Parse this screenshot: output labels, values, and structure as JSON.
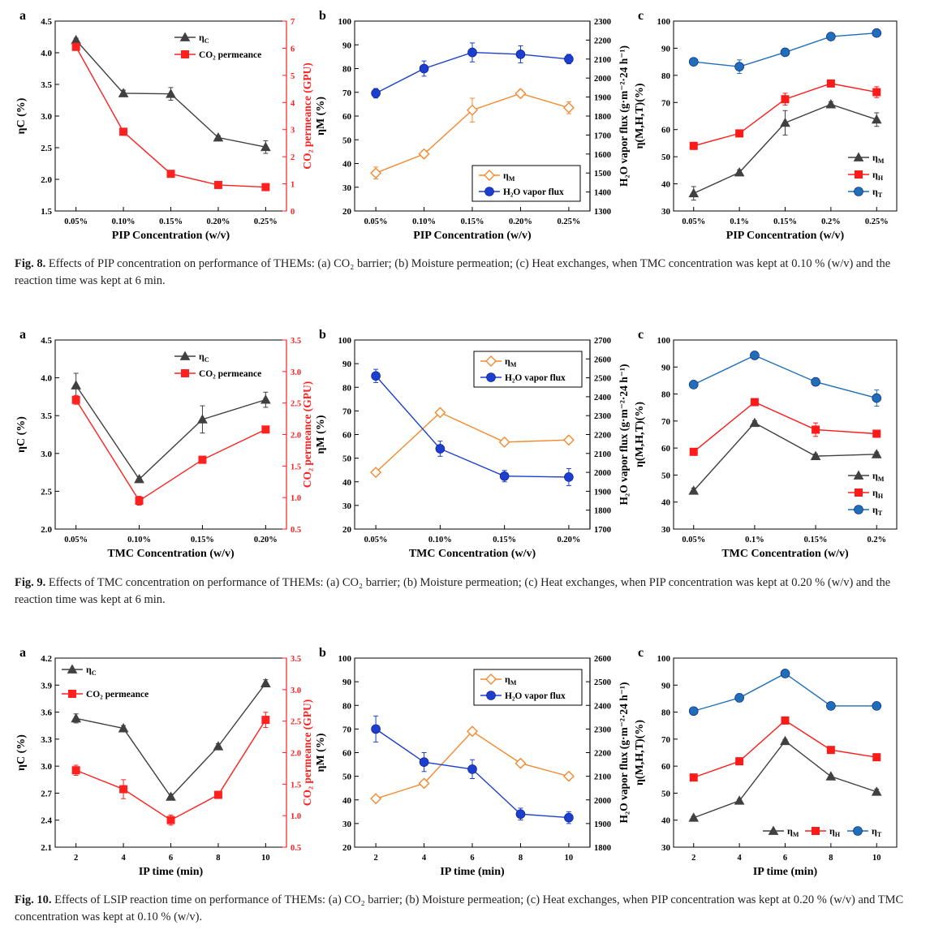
{
  "figures": [
    {
      "id": "fig8",
      "caption": {
        "label": "Fig. 8.",
        "text": "Effects of PIP concentration on performance of THEMs: (a) CO₂ barrier; (b) Moisture permeation; (c) Heat exchanges, when TMC concentration was kept at 0.10 % (w/v) and the reaction time was kept at 6 min."
      }
    },
    {
      "id": "fig9",
      "caption": {
        "label": "Fig. 9.",
        "text": "Effects of TMC concentration on performance of THEMs: (a) CO₂ barrier; (b) Moisture permeation; (c) Heat exchanges, when PIP concentration was kept at 0.20 % (w/v) and the reaction time was kept at 6 min."
      }
    },
    {
      "id": "fig10",
      "caption": {
        "label": "Fig. 10.",
        "text": "Effects of LSIP reaction time on performance of THEMs: (a) CO₂ barrier; (b) Moisture permeation; (c) Heat exchanges, when PIP concentration was kept at 0.20 % (w/v) and TMC concentration was kept at 0.10 % (w/v)."
      }
    }
  ],
  "chart_data": [
    {
      "figure": "fig8",
      "panel": "a",
      "type": "line",
      "categories": [
        "0.05%",
        "0.10%",
        "0.15%",
        "0.20%",
        "0.25%"
      ],
      "xlabel": "PIP Concentration (w/v)",
      "ylabel_left": "ηC (%)",
      "ylim_left": [
        1.5,
        4.5
      ],
      "yticks_left": [
        "1.5",
        "2.0",
        "2.5",
        "3.0",
        "3.5",
        "4.0",
        "4.5"
      ],
      "ylabel_right": "CO₂ permeance (GPU)",
      "ylim_right": [
        0,
        7
      ],
      "yticks_right": [
        "0",
        "1",
        "2",
        "3",
        "4",
        "5",
        "6",
        "7"
      ],
      "legend_position": "top-right",
      "series": [
        {
          "name": "ηC",
          "axis": "left",
          "color": "#404040",
          "marker": "triangle",
          "values": [
            4.2,
            3.36,
            3.35,
            2.66,
            2.51
          ],
          "errors": [
            0.03,
            0.05,
            0.1,
            0.03,
            0.1
          ]
        },
        {
          "name": "CO₂ permeance",
          "axis": "right",
          "color": "#ff2020",
          "marker": "square",
          "values": [
            6.05,
            2.92,
            1.37,
            0.96,
            0.88
          ],
          "errors": [
            0.12,
            0.05,
            0.05,
            0.05,
            0.05
          ]
        }
      ]
    },
    {
      "figure": "fig8",
      "panel": "b",
      "type": "line",
      "categories": [
        "0.05%",
        "0.10%",
        "0.15%",
        "0.20%",
        "0.25%"
      ],
      "xlabel": "PIP Concentration  (w/v)",
      "ylabel_left": "ηM (%)",
      "ylim_left": [
        20,
        100
      ],
      "yticks_left": [
        "20",
        "30",
        "40",
        "50",
        "60",
        "70",
        "80",
        "90",
        "100"
      ],
      "ylabel_right": "H₂O vapor flux (g·m⁻²·24 h⁻¹)",
      "ylim_right": [
        1300,
        2300
      ],
      "yticks_right": [
        "1300",
        "1400",
        "1500",
        "1600",
        "1700",
        "1800",
        "1900",
        "2000",
        "2100",
        "2200",
        "2300"
      ],
      "legend_position": "bottom-right",
      "series": [
        {
          "name": "ηM",
          "axis": "left",
          "color": "#f28a30",
          "marker": "diamond-open",
          "values": [
            36,
            44,
            62.5,
            69.5,
            63.5
          ],
          "errors": [
            2.5,
            1.5,
            5,
            1.5,
            2.5
          ]
        },
        {
          "name": "H₂O vapor flux",
          "axis": "right",
          "color": "#1c3fcf",
          "marker": "circle",
          "values": [
            1920,
            2050,
            2135,
            2125,
            2100
          ],
          "errors": [
            25,
            40,
            50,
            45,
            25
          ]
        }
      ]
    },
    {
      "figure": "fig8",
      "panel": "c",
      "type": "line",
      "categories": [
        "0.05%",
        "0.1%",
        "0.15%",
        "0.2%",
        "0.25%"
      ],
      "xlabel": "PIP Concentration (w/v)",
      "ylabel_left": "η(M,H,T)(%)",
      "ylim_left": [
        30,
        100
      ],
      "yticks_left": [
        "30",
        "40",
        "50",
        "60",
        "70",
        "80",
        "90",
        "100"
      ],
      "legend_position": "bottom-right",
      "series": [
        {
          "name": "ηM",
          "axis": "left",
          "color": "#404040",
          "marker": "triangle",
          "values": [
            36.5,
            44.2,
            62.5,
            69.3,
            63.7
          ],
          "errors": [
            2.5,
            1,
            4.5,
            1,
            2.5
          ]
        },
        {
          "name": "ηH",
          "axis": "left",
          "color": "#ff1a1a",
          "marker": "square",
          "values": [
            54,
            58.6,
            71.2,
            77,
            73.8
          ],
          "errors": [
            0.5,
            0.5,
            2.2,
            0.7,
            2
          ]
        },
        {
          "name": "ηT",
          "axis": "left",
          "color": "#1f6fb8",
          "marker": "circle",
          "values": [
            85,
            83.2,
            88.5,
            94.3,
            95.6
          ],
          "errors": [
            0.5,
            2.5,
            0.5,
            0.5,
            0.5
          ]
        }
      ]
    },
    {
      "figure": "fig9",
      "panel": "a",
      "type": "line",
      "categories": [
        "0.05%",
        "0.10%",
        "0.15%",
        "0.20%"
      ],
      "xlabel": "TMC Concentration (w/v)",
      "ylabel_left": "ηC (%)",
      "ylim_left": [
        2.0,
        4.5
      ],
      "yticks_left": [
        "2.0",
        "2.5",
        "3.0",
        "3.5",
        "4.0",
        "4.5"
      ],
      "ylabel_right": "CO₂ permeance (GPU)",
      "ylim_right": [
        0.5,
        3.5
      ],
      "yticks_right": [
        "0.5",
        "1.0",
        "1.5",
        "2.0",
        "2.5",
        "3.0",
        "3.5"
      ],
      "legend_position": "top-right",
      "series": [
        {
          "name": "ηC",
          "axis": "left",
          "color": "#404040",
          "marker": "triangle",
          "values": [
            3.9,
            2.66,
            3.45,
            3.71
          ],
          "errors": [
            0.16,
            0.03,
            0.18,
            0.1
          ]
        },
        {
          "name": "CO₂ permeance",
          "axis": "right",
          "color": "#ff2020",
          "marker": "square",
          "values": [
            2.55,
            0.95,
            1.6,
            2.08
          ],
          "errors": [
            0.07,
            0.07,
            0.04,
            0.05
          ]
        }
      ]
    },
    {
      "figure": "fig9",
      "panel": "b",
      "type": "line",
      "categories": [
        "0.05%",
        "0.10%",
        "0.15%",
        "0.20%"
      ],
      "xlabel": "TMC Concentration  (w/v)",
      "ylabel_left": "ηM (%)",
      "ylim_left": [
        20,
        100
      ],
      "yticks_left": [
        "20",
        "30",
        "40",
        "50",
        "60",
        "70",
        "80",
        "90",
        "100"
      ],
      "ylabel_right": "H₂O vapor flux (g·m⁻²·24 h⁻¹)",
      "ylim_right": [
        1700,
        2700
      ],
      "yticks_right": [
        "1700",
        "1800",
        "1900",
        "2000",
        "2100",
        "2200",
        "2300",
        "2400",
        "2500",
        "2600",
        "2700"
      ],
      "legend_position": "top-right",
      "series": [
        {
          "name": "ηM",
          "axis": "left",
          "color": "#f28a30",
          "marker": "diamond-open",
          "values": [
            44,
            69.3,
            56.8,
            57.7
          ],
          "errors": [
            1,
            1,
            1,
            1
          ]
        },
        {
          "name": "H₂O vapor flux",
          "axis": "right",
          "color": "#1c3fcf",
          "marker": "circle",
          "values": [
            2510,
            2125,
            1980,
            1975
          ],
          "errors": [
            35,
            40,
            30,
            45
          ]
        }
      ]
    },
    {
      "figure": "fig9",
      "panel": "c",
      "type": "line",
      "categories": [
        "0.05%",
        "0.1%",
        "0.15%",
        "0.2%"
      ],
      "xlabel": "TMC Concentration  (w/v)",
      "ylabel_left": "η(M,H,T)(%)",
      "ylim_left": [
        30,
        100
      ],
      "yticks_left": [
        "30",
        "40",
        "50",
        "60",
        "70",
        "80",
        "90",
        "100"
      ],
      "legend_position": "bottom-right",
      "series": [
        {
          "name": "ηM",
          "axis": "left",
          "color": "#404040",
          "marker": "triangle",
          "values": [
            44.2,
            69.3,
            57,
            57.7
          ],
          "errors": [
            1,
            0.8,
            0.8,
            0.8
          ]
        },
        {
          "name": "ηH",
          "axis": "left",
          "color": "#ff1a1a",
          "marker": "square",
          "values": [
            58.6,
            77,
            66.8,
            65.3
          ],
          "errors": [
            0.5,
            0.8,
            2.5,
            0.6
          ]
        },
        {
          "name": "ηT",
          "axis": "left",
          "color": "#1f6fb8",
          "marker": "circle",
          "values": [
            83.5,
            94.3,
            84.5,
            78.5
          ],
          "errors": [
            0.5,
            0.5,
            1.2,
            3
          ]
        }
      ]
    },
    {
      "figure": "fig10",
      "panel": "a",
      "type": "line",
      "x": [
        2,
        4,
        6,
        8,
        10
      ],
      "xticks": [
        "2",
        "4",
        "6",
        "8",
        "10"
      ],
      "xlabel": "IP time (min)",
      "ylabel_left": "ηC (%)",
      "ylim_left": [
        2.1,
        4.2
      ],
      "yticks_left": [
        "2.1",
        "2.4",
        "2.7",
        "3.0",
        "3.3",
        "3.6",
        "3.9",
        "4.2"
      ],
      "ylabel_right": "CO₂ permeance (GPU)",
      "ylim_right": [
        0.5,
        3.5
      ],
      "yticks_right": [
        "0.5",
        "1.0",
        "1.5",
        "2.0",
        "2.5",
        "3.0",
        "3.5"
      ],
      "legend_position": "top-left",
      "series": [
        {
          "name": "ηC",
          "axis": "left",
          "color": "#404040",
          "marker": "triangle",
          "values": [
            3.53,
            3.42,
            2.66,
            3.22,
            3.92
          ],
          "errors": [
            0.05,
            0.03,
            0.03,
            0.03,
            0.04
          ]
        },
        {
          "name": "CO₂ permeance",
          "axis": "right",
          "color": "#ff2020",
          "marker": "square",
          "values": [
            1.72,
            1.42,
            0.93,
            1.33,
            2.52
          ],
          "errors": [
            0.08,
            0.15,
            0.08,
            0.05,
            0.12
          ]
        }
      ]
    },
    {
      "figure": "fig10",
      "panel": "b",
      "type": "line",
      "x": [
        2,
        4,
        6,
        8,
        10
      ],
      "xticks": [
        "2",
        "4",
        "6",
        "8",
        "10"
      ],
      "xlabel": "IP time (min)",
      "ylabel_left": "ηM (%)",
      "ylim_left": [
        20,
        100
      ],
      "yticks_left": [
        "20",
        "30",
        "40",
        "50",
        "60",
        "70",
        "80",
        "90",
        "100"
      ],
      "ylabel_right": "H₂O vapor flux (g·m⁻²·24 h⁻¹)",
      "ylim_right": [
        1800,
        2600
      ],
      "yticks_right": [
        "1800",
        "1900",
        "2000",
        "2100",
        "2200",
        "2300",
        "2400",
        "2500",
        "2600"
      ],
      "legend_position": "top-right",
      "series": [
        {
          "name": "ηM",
          "axis": "left",
          "color": "#f28a30",
          "marker": "diamond-open",
          "values": [
            40.5,
            47,
            69,
            55.5,
            50
          ],
          "errors": [
            0.8,
            0.8,
            0.8,
            0.8,
            0.8
          ]
        },
        {
          "name": "H₂O vapor flux",
          "axis": "right",
          "color": "#1c3fcf",
          "marker": "circle",
          "values": [
            2300,
            2160,
            2130,
            1940,
            1925
          ],
          "errors": [
            55,
            40,
            40,
            25,
            25
          ]
        }
      ]
    },
    {
      "figure": "fig10",
      "panel": "c",
      "type": "line",
      "x": [
        2,
        4,
        6,
        8,
        10
      ],
      "xticks": [
        "2",
        "4",
        "6",
        "8",
        "10"
      ],
      "xlabel": "IP time (min)",
      "ylabel_left": "η(M,H,T)(%)",
      "ylim_left": [
        30,
        100
      ],
      "yticks_left": [
        "30",
        "40",
        "50",
        "60",
        "70",
        "80",
        "90",
        "100"
      ],
      "legend_position": "bottom-right",
      "series": [
        {
          "name": "ηM",
          "axis": "left",
          "color": "#404040",
          "marker": "triangle",
          "values": [
            40.9,
            47.2,
            69.3,
            56.2,
            50.5
          ],
          "errors": [
            0.5,
            0.5,
            0.6,
            0.5,
            1
          ]
        },
        {
          "name": "ηH",
          "axis": "left",
          "color": "#ff1a1a",
          "marker": "square",
          "values": [
            55.8,
            61.8,
            76.9,
            66,
            63.3
          ],
          "errors": [
            0.5,
            0.5,
            0.5,
            0.5,
            0.5
          ]
        },
        {
          "name": "ηT",
          "axis": "left",
          "color": "#1f6fb8",
          "marker": "circle",
          "values": [
            80.4,
            85.3,
            94.3,
            82.3,
            82.3
          ],
          "errors": [
            0.5,
            1.5,
            0.5,
            0.5,
            0.5
          ]
        }
      ]
    }
  ]
}
